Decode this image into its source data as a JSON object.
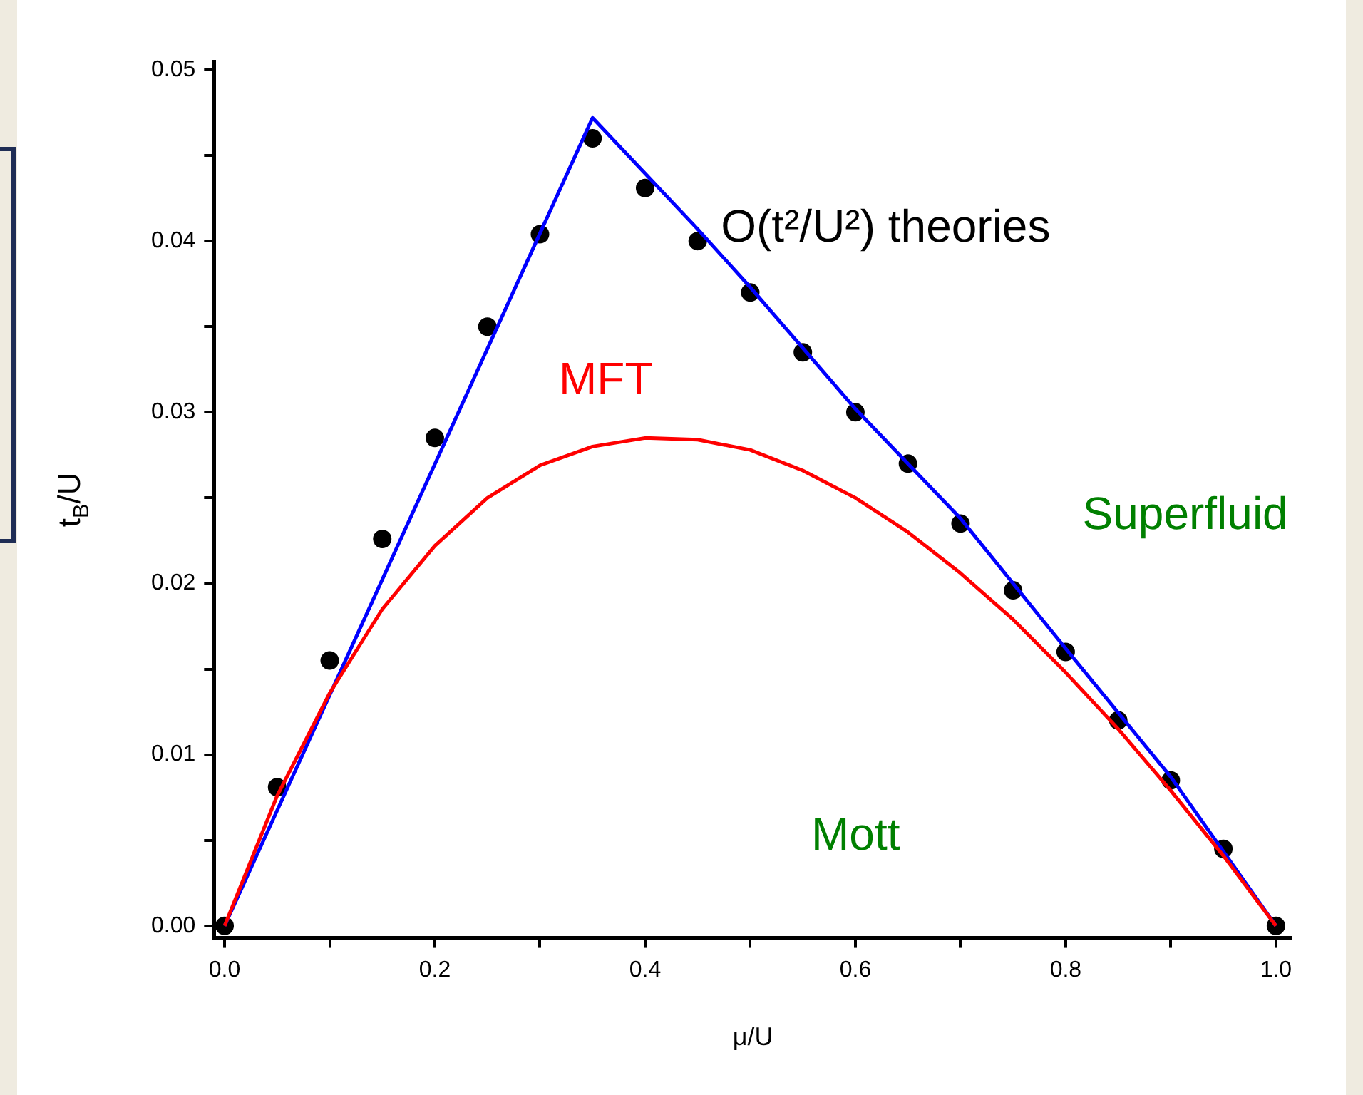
{
  "chart_data": {
    "type": "line",
    "xlabel": "μ/U",
    "ylabel": "t$_{B}$/U",
    "xlim": [
      -0.01,
      1.015
    ],
    "ylim": [
      -0.0007,
      0.0505
    ],
    "xticks": [
      {
        "value": 0,
        "label": "0.0"
      },
      {
        "value": 0.1,
        "label": null
      },
      {
        "value": 0.2,
        "label": "0.2"
      },
      {
        "value": 0.3,
        "label": null
      },
      {
        "value": 0.4,
        "label": "0.4"
      },
      {
        "value": 0.5,
        "label": null
      },
      {
        "value": 0.6,
        "label": "0.6"
      },
      {
        "value": 0.7,
        "label": null
      },
      {
        "value": 0.8,
        "label": "0.8"
      },
      {
        "value": 0.9,
        "label": null
      },
      {
        "value": 1,
        "label": "1.0"
      }
    ],
    "yticks": [
      {
        "value": 0,
        "label": "0.00"
      },
      {
        "value": 0.005,
        "label": null
      },
      {
        "value": 0.01,
        "label": "0.01"
      },
      {
        "value": 0.015,
        "label": null
      },
      {
        "value": 0.02,
        "label": "0.02"
      },
      {
        "value": 0.025,
        "label": null
      },
      {
        "value": 0.03,
        "label": "0.03"
      },
      {
        "value": 0.035,
        "label": null
      },
      {
        "value": 0.04,
        "label": "0.04"
      },
      {
        "value": 0.045,
        "label": null
      },
      {
        "value": 0.05,
        "label": "0.05"
      }
    ],
    "series": [
      {
        "color": "#ff0000",
        "marker": "none",
        "x": [
          0,
          0.05,
          0.1,
          0.15,
          0.2,
          0.25,
          0.3,
          0.35,
          0.4,
          0.45,
          0.5,
          0.55,
          0.6,
          0.65,
          0.7,
          0.75,
          0.8,
          0.85,
          0.9,
          0.95,
          1.0
        ],
        "values": [
          0,
          0.0076,
          0.0136,
          0.0185,
          0.0222,
          0.025,
          0.0269,
          0.028,
          0.0285,
          0.0284,
          0.0278,
          0.0266,
          0.025,
          0.023,
          0.0206,
          0.0179,
          0.0148,
          0.0115,
          0.0079,
          0.0041,
          0
        ]
      },
      {
        "color": "#0000ff",
        "marker": "none",
        "x": [
          0,
          0.35,
          0.45,
          0.5,
          0.6,
          0.7,
          0.8,
          0.9,
          1.0
        ],
        "values": [
          0,
          0.0472,
          0.0407,
          0.0373,
          0.0302,
          0.0238,
          0.0162,
          0.0087,
          0
        ]
      },
      {
        "type": "scatter",
        "color": "#000000",
        "marker": "circle",
        "x": [
          0,
          0.05,
          0.1,
          0.15,
          0.2,
          0.25,
          0.3,
          0.35,
          0.4,
          0.45,
          0.5,
          0.55,
          0.6,
          0.65,
          0.7,
          0.75,
          0.8,
          0.85,
          0.9,
          0.95,
          1.0
        ],
        "values": [
          0,
          0.0081,
          0.0155,
          0.0226,
          0.0285,
          0.035,
          0.0404,
          0.046,
          0.0431,
          0.04,
          0.037,
          0.0335,
          0.03,
          0.027,
          0.0235,
          0.0196,
          0.016,
          0.012,
          0.0085,
          0.0045,
          0
        ]
      }
    ],
    "annotations": [
      "O(t²/U²) theories",
      "MFT",
      "Superfluid",
      "Mott"
    ]
  }
}
